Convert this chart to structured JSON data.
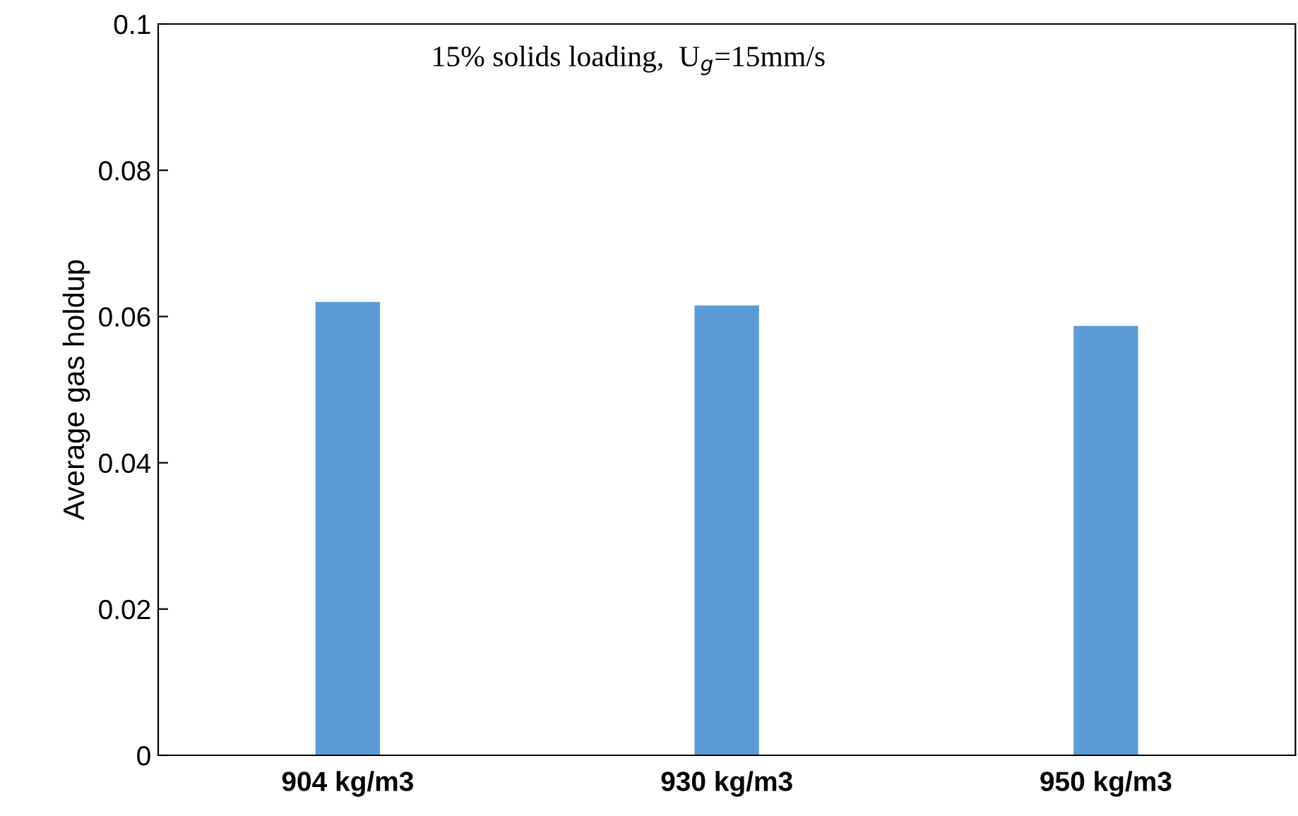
{
  "chart_data": {
    "type": "bar",
    "ylabel": "Average gas holdup",
    "categories": [
      "904 kg/m3",
      "930 kg/m3",
      "950 kg/m3"
    ],
    "values": [
      0.062,
      0.0615,
      0.0587
    ],
    "color": "#5b9bd5",
    "ylim": [
      0,
      0.1
    ],
    "yticks": [
      0,
      0.02,
      0.04,
      0.06,
      0.08,
      0.1
    ],
    "grid": false,
    "annotations": [
      "15% solids loading,  U$_{g}$=15mm/s"
    ]
  }
}
